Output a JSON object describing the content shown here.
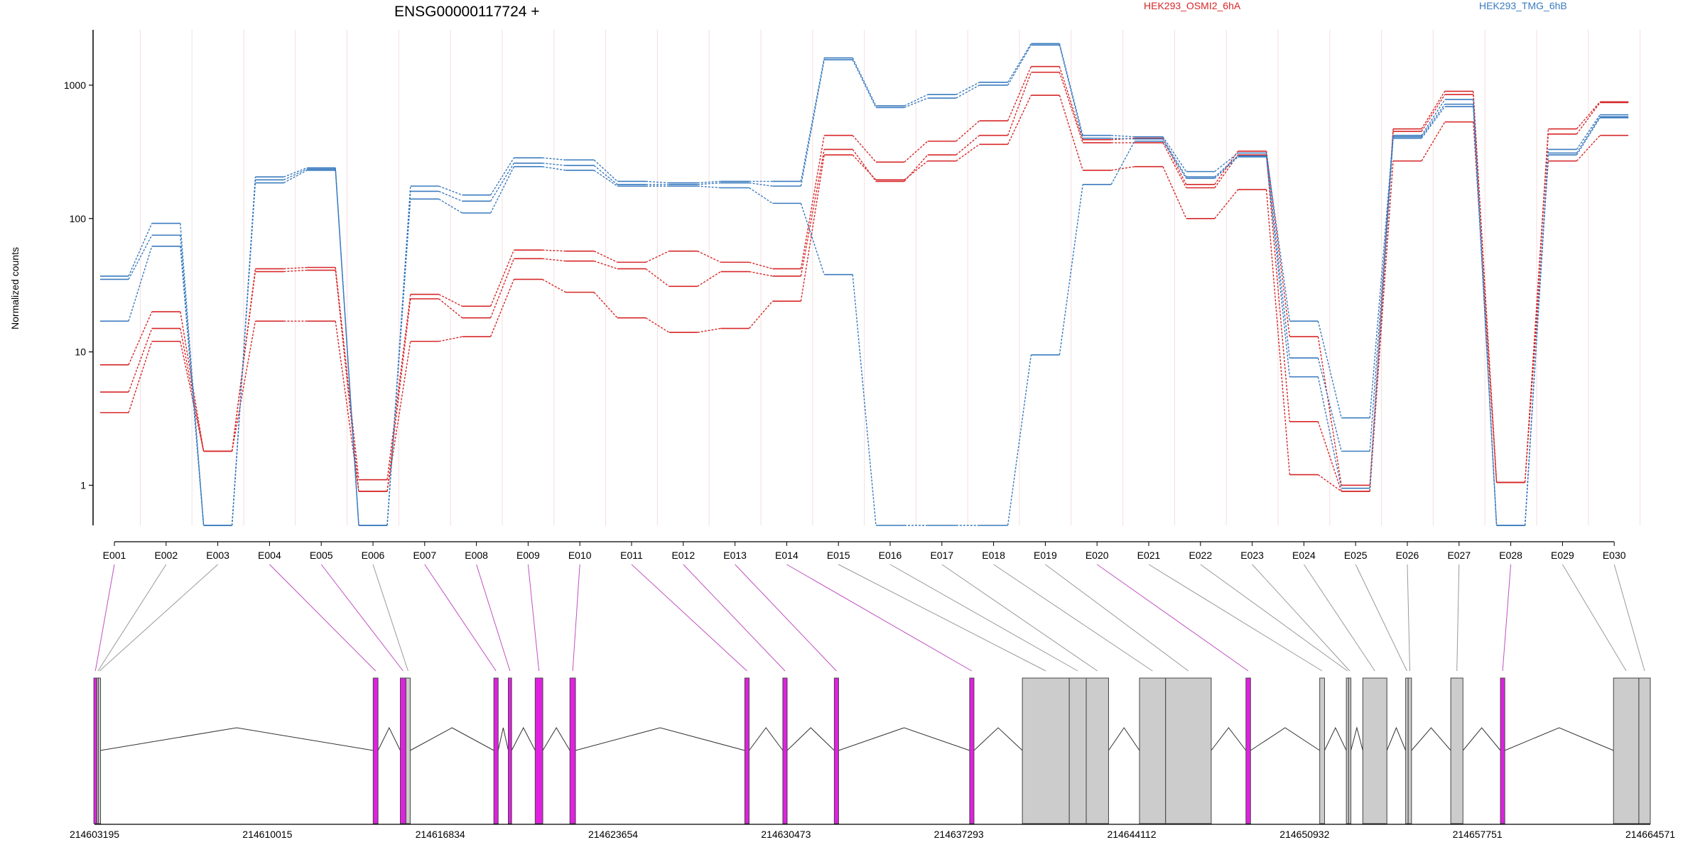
{
  "chart_data": {
    "type": "line",
    "title": "ENSG00000117724 +",
    "ylabel": "Normalized counts",
    "y_scale": "log",
    "ylim": [
      0.5,
      2600
    ],
    "yticks": [
      1,
      10,
      100,
      1000
    ],
    "ytick_labels": [
      "1",
      "10",
      "100",
      "1000"
    ],
    "categories": [
      "E001",
      "E002",
      "E003",
      "E004",
      "E005",
      "E006",
      "E007",
      "E008",
      "E009",
      "E010",
      "E011",
      "E012",
      "E013",
      "E014",
      "E015",
      "E016",
      "E017",
      "E018",
      "E019",
      "E020",
      "E021",
      "E022",
      "E023",
      "E024",
      "E025",
      "E026",
      "E027",
      "E028",
      "E029",
      "E030"
    ],
    "legend": [
      "HEK293_OSMI2_6hA",
      "HEK293_TMG_6hB"
    ],
    "colors": {
      "red": "#d62728",
      "blue": "#3a7bbf",
      "exon_gray": "#cccccc",
      "exon_magenta": "#e021e0",
      "link_magenta": "#c050c0"
    },
    "series": [
      {
        "group": "HEK293_OSMI2_6hA",
        "color": "#d62728",
        "values": [
          8,
          20,
          1.8,
          42,
          43,
          1.1,
          27,
          22,
          58,
          57,
          47,
          57,
          47,
          42,
          420,
          265,
          380,
          540,
          1380,
          390,
          400,
          180,
          320,
          13,
          1.0,
          470,
          900,
          1.05,
          470,
          750
        ]
      },
      {
        "group": "HEK293_OSMI2_6hA",
        "color": "#d62728",
        "values": [
          5,
          15,
          1.8,
          40,
          41,
          0.9,
          25,
          18,
          50,
          48,
          42,
          31,
          40,
          37,
          330,
          190,
          300,
          420,
          1250,
          370,
          370,
          170,
          300,
          3,
          0.9,
          450,
          850,
          1.05,
          430,
          740
        ]
      },
      {
        "group": "HEK293_OSMI2_6hA",
        "color": "#d62728",
        "values": [
          3.5,
          12,
          1.8,
          17,
          17,
          0.9,
          12,
          13,
          35,
          28,
          18,
          14,
          15,
          24,
          300,
          195,
          270,
          360,
          840,
          230,
          245,
          100,
          165,
          1.2,
          0.9,
          270,
          530,
          1.05,
          270,
          420
        ]
      },
      {
        "group": "HEK293_TMG_6hB",
        "color": "#3a7bbf",
        "values": [
          37,
          92,
          0.5,
          205,
          240,
          0.5,
          175,
          150,
          285,
          275,
          190,
          185,
          190,
          190,
          1600,
          700,
          850,
          1050,
          2050,
          420,
          410,
          225,
          310,
          17,
          3.2,
          420,
          780,
          0.5,
          330,
          600
        ]
      },
      {
        "group": "HEK293_TMG_6hB",
        "color": "#3a7bbf",
        "values": [
          35,
          75,
          0.5,
          195,
          235,
          0.5,
          160,
          135,
          260,
          250,
          180,
          180,
          185,
          175,
          1550,
          680,
          800,
          1000,
          2000,
          400,
          395,
          205,
          295,
          9,
          1.8,
          410,
          720,
          0.5,
          310,
          580
        ]
      },
      {
        "group": "HEK293_TMG_6hB",
        "color": "#3a7bbf",
        "values": [
          17,
          62,
          0.5,
          185,
          230,
          0.5,
          140,
          110,
          245,
          230,
          175,
          175,
          170,
          130,
          38,
          0.5,
          0.5,
          0.5,
          9.5,
          180,
          380,
          200,
          290,
          6.5,
          0.95,
          400,
          690,
          0.5,
          300,
          570
        ]
      }
    ],
    "genomic_coordinates": [
      "214603195",
      "214610015",
      "214616834",
      "214623654",
      "214630473",
      "214637293",
      "214644112",
      "214650932",
      "214657751",
      "214664571"
    ],
    "gene_model_exons": [
      {
        "label": "E001",
        "start": 214603170,
        "end": 214603290,
        "color": "magenta"
      },
      {
        "label": "E002",
        "start": 214603290,
        "end": 214603350,
        "color": "gray"
      },
      {
        "label": "E003",
        "start": 214603350,
        "end": 214603420,
        "color": "gray"
      },
      {
        "label": "E004",
        "start": 214614190,
        "end": 214614380,
        "color": "magenta"
      },
      {
        "label": "E005",
        "start": 214615260,
        "end": 214615480,
        "color": "magenta"
      },
      {
        "label": "E006",
        "start": 214615480,
        "end": 214615650,
        "color": "gray"
      },
      {
        "label": "E007",
        "start": 214618950,
        "end": 214619120,
        "color": "magenta"
      },
      {
        "label": "E008",
        "start": 214619520,
        "end": 214619650,
        "color": "magenta"
      },
      {
        "label": "E009",
        "start": 214620580,
        "end": 214620880,
        "color": "magenta"
      },
      {
        "label": "E010",
        "start": 214621950,
        "end": 214622170,
        "color": "magenta"
      },
      {
        "label": "E011",
        "start": 214628850,
        "end": 214629020,
        "color": "magenta"
      },
      {
        "label": "E012",
        "start": 214630350,
        "end": 214630520,
        "color": "magenta"
      },
      {
        "label": "E013",
        "start": 214632380,
        "end": 214632550,
        "color": "magenta"
      },
      {
        "label": "E014",
        "start": 214637720,
        "end": 214637890,
        "color": "magenta"
      },
      {
        "label": "E015",
        "start": 214639800,
        "end": 214641650,
        "color": "gray"
      },
      {
        "label": "E016",
        "start": 214641650,
        "end": 214642320,
        "color": "gray"
      },
      {
        "label": "E017",
        "start": 214642320,
        "end": 214643200,
        "color": "gray"
      },
      {
        "label": "E018",
        "start": 214644420,
        "end": 214645450,
        "color": "gray"
      },
      {
        "label": "E019",
        "start": 214645450,
        "end": 214647250,
        "color": "gray"
      },
      {
        "label": "E020",
        "start": 214648620,
        "end": 214648800,
        "color": "magenta"
      },
      {
        "label": "E021",
        "start": 214651530,
        "end": 214651720,
        "color": "gray"
      },
      {
        "label": "E022",
        "start": 214652580,
        "end": 214652670,
        "color": "gray"
      },
      {
        "label": "E023",
        "start": 214652670,
        "end": 214652760,
        "color": "gray"
      },
      {
        "label": "E024",
        "start": 214653230,
        "end": 214654180,
        "color": "gray"
      },
      {
        "label": "E025",
        "start": 214654920,
        "end": 214655020,
        "color": "gray"
      },
      {
        "label": "E026",
        "start": 214655020,
        "end": 214655150,
        "color": "gray"
      },
      {
        "label": "E027",
        "start": 214656700,
        "end": 214657180,
        "color": "gray"
      },
      {
        "label": "E028",
        "start": 214658660,
        "end": 214658830,
        "color": "magenta"
      },
      {
        "label": "E029",
        "start": 214663120,
        "end": 214664120,
        "color": "gray"
      },
      {
        "label": "E030",
        "start": 214664120,
        "end": 214664571,
        "color": "gray"
      }
    ],
    "grid": false
  }
}
